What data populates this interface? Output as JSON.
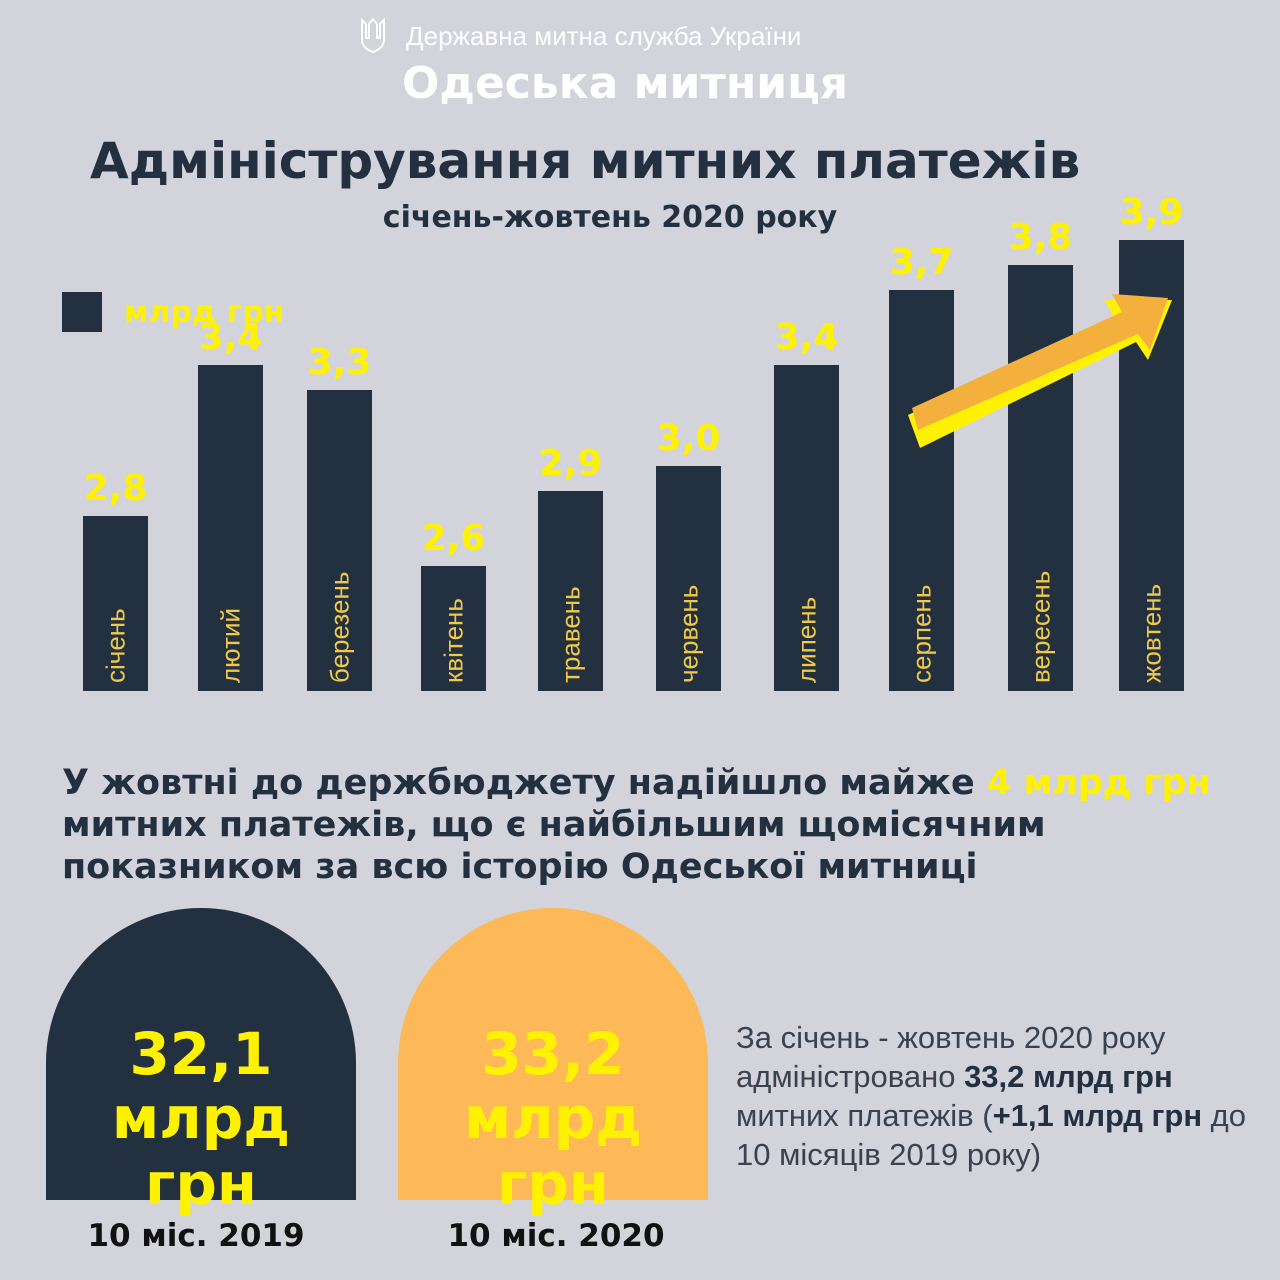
{
  "header": {
    "agency": "Державна митна служба України",
    "office": "Одеська митниця",
    "emblem_icon": "trident-icon"
  },
  "chart_data": {
    "type": "bar",
    "title": "Адміністрування митних платежів",
    "subtitle": "січень-жовтень 2020 року",
    "legend": "млрд грн",
    "categories": [
      "січень",
      "лютий",
      "березень",
      "квітень",
      "травень",
      "червень",
      "липень",
      "серпень",
      "вересень",
      "жовтень"
    ],
    "values": [
      2.8,
      3.4,
      3.3,
      2.6,
      2.9,
      3.0,
      3.4,
      3.7,
      3.8,
      3.9
    ],
    "value_labels": [
      "2,8",
      "3,4",
      "3,3",
      "2,6",
      "2,9",
      "3,0",
      "3,4",
      "3,7",
      "3,8",
      "3,9"
    ],
    "ylim": [
      2.1,
      3.9
    ],
    "annotation": "upward-trend-arrow",
    "colors": {
      "bar": "#22303f",
      "label": "#fff200",
      "arrow": "#f4b03c"
    }
  },
  "headline": {
    "part1": "У жовтні до держбюджету надійшло майже ",
    "highlight": "4 млрд грн",
    "part2": " митних платежів, що є найбільшим щомісячним показником за всю історію Одеської митниці"
  },
  "comparison": [
    {
      "value": "32,1",
      "unit": "млрд грн",
      "caption": "10 міс. 2019",
      "color": "#22303f"
    },
    {
      "value": "33,2",
      "unit": "млрд грн",
      "caption": "10 міс. 2020",
      "color": "#fdb957"
    }
  ],
  "summary": {
    "t1": "За січень - жовтень 2020 року адміністровано ",
    "b1": "33,2 млрд грн",
    "t2": " митних платежів (",
    "b2": "+1,1 млрд грн",
    "t3": " до 10 місяців 2019 року)"
  }
}
